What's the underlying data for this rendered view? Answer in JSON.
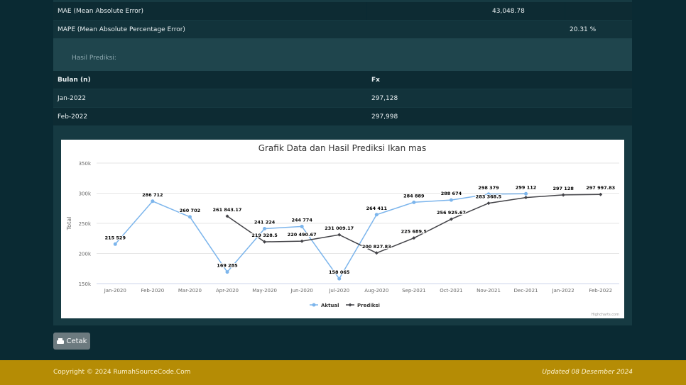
{
  "metrics": [
    {
      "label": "MAE (Mean Absolute Error)",
      "value": "43,048.78"
    },
    {
      "label": "MAPE (Mean Absolute Percentage Error)",
      "value": "20.31 %"
    }
  ],
  "prediction": {
    "heading": "Hasil Prediksi:",
    "columns": [
      "Bulan (n)",
      "Fx"
    ],
    "rows": [
      {
        "month": "Jan-2022",
        "fx": "297,128"
      },
      {
        "month": "Feb-2022",
        "fx": "297,998"
      }
    ]
  },
  "chart_data": {
    "type": "line",
    "title": "Grafik Data dan Hasil Prediksi Ikan mas",
    "ylabel": "Total",
    "xlabel": "",
    "ylim": [
      150000,
      350000
    ],
    "yticks": [
      "150k",
      "200k",
      "250k",
      "300k",
      "350k"
    ],
    "ytick_values": [
      150000,
      200000,
      250000,
      300000,
      350000
    ],
    "categories": [
      "Jan-2020",
      "Feb-2020",
      "Mar-2020",
      "Apr-2020",
      "May-2020",
      "Jun-2020",
      "Jul-2020",
      "Aug-2020",
      "Sep-2021",
      "Oct-2021",
      "Nov-2021",
      "Dec-2021",
      "Jan-2022",
      "Feb-2022"
    ],
    "legend_position": "bottom-center",
    "grid": true,
    "series": [
      {
        "name": "Aktual",
        "color": "#7cb5ec",
        "values": [
          215529,
          286712,
          260702,
          169285,
          241224,
          244774,
          158065,
          264411,
          284889,
          288674,
          298379,
          299112,
          null,
          null
        ],
        "labels": [
          "215 529",
          "286 712",
          "260 702",
          "169 285",
          "241 224",
          "244 774",
          "158 065",
          "264 411",
          "284 889",
          "288 674",
          "298 379",
          "299 112",
          "",
          ""
        ]
      },
      {
        "name": "Prediksi",
        "color": "#434348",
        "values": [
          null,
          null,
          null,
          261843.17,
          219328.5,
          220490.67,
          231009.17,
          200827.83,
          225689.5,
          256925.67,
          283368.5,
          292880,
          297128,
          297997.83
        ],
        "labels": [
          "",
          "",
          "",
          "261 843.17",
          "219 328.5",
          "220 490.67",
          "231 009.17",
          "200 827.83",
          "225 689.5",
          "256 925.67",
          "283 368.5",
          "",
          "297 128",
          "297 997.83"
        ]
      }
    ],
    "credits": "Highcharts.com"
  },
  "print_button": {
    "label": "Cetak",
    "icon": "printer-icon"
  },
  "footer": {
    "copyright": "Copyright © 2024 RumahSourceCode.Com",
    "updated": "Updated 08 Desember 2024"
  }
}
